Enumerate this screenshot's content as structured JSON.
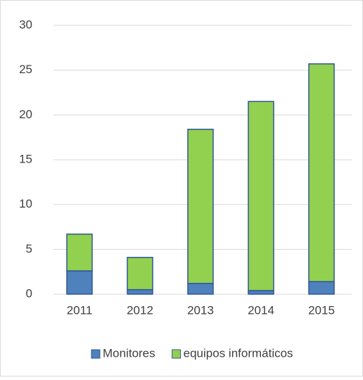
{
  "chart_data": {
    "type": "stacked_bar",
    "categories": [
      "2011",
      "2012",
      "2013",
      "2014",
      "2015"
    ],
    "series": [
      {
        "name": "Monitores",
        "color": "#4f81bd",
        "values": [
          2.6,
          0.5,
          1.2,
          0.4,
          1.4
        ]
      },
      {
        "name": "equipos informáticos",
        "color": "#92d050",
        "values": [
          4.1,
          3.6,
          17.2,
          21.1,
          24.3
        ]
      }
    ],
    "ylim": [
      0,
      30
    ],
    "yticks": [
      0,
      5,
      10,
      15,
      20,
      25,
      30
    ],
    "grid": true,
    "legend": "bottom"
  }
}
